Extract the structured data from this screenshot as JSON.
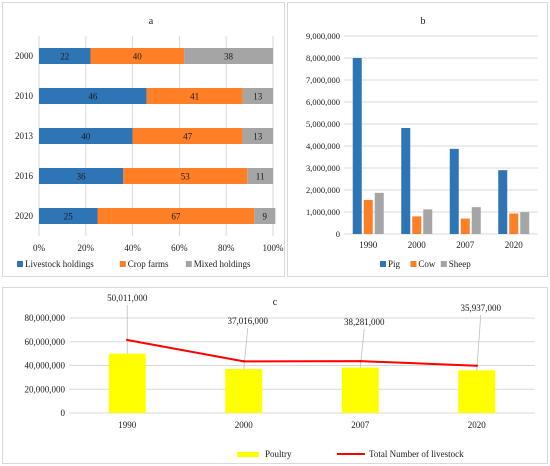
{
  "colors": {
    "livestock": "#2e75b6",
    "crop": "#ff7f27",
    "mixed": "#a5a5a5",
    "pig": "#2e75b6",
    "cow": "#ff7f27",
    "sheep": "#a5a5a5",
    "poultry": "#ffff00",
    "total": "#ff0000",
    "grid": "#d9d9d9",
    "axis": "#bfbfbf",
    "text": "#1a1a1a"
  },
  "chart_data": [
    {
      "id": "a",
      "type": "bar",
      "orientation": "horizontal-stacked-100",
      "title": "a",
      "categories": [
        "2000",
        "2010",
        "2013",
        "2016",
        "2020"
      ],
      "series": [
        {
          "name": "Livestock holdings",
          "values": [
            22,
            46,
            40,
            36,
            25
          ]
        },
        {
          "name": "Crop farms",
          "values": [
            40,
            41,
            47,
            53,
            67
          ]
        },
        {
          "name": "Mixed holdings",
          "values": [
            38,
            13,
            13,
            11,
            9
          ]
        }
      ],
      "xticks": [
        "0%",
        "20%",
        "40%",
        "60%",
        "80%",
        "100%"
      ],
      "xlim": [
        0,
        100
      ],
      "legend": "bottom",
      "grid": true
    },
    {
      "id": "b",
      "type": "bar",
      "title": "b",
      "categories": [
        "1990",
        "2000",
        "2007",
        "2020"
      ],
      "series": [
        {
          "name": "Pig",
          "values": [
            8000000,
            4820000,
            3870000,
            2900000
          ]
        },
        {
          "name": "Cow",
          "values": [
            1550000,
            800000,
            700000,
            930000
          ]
        },
        {
          "name": "Sheep",
          "values": [
            1870000,
            1120000,
            1220000,
            990000
          ]
        }
      ],
      "yticks": [
        "0",
        "1,000,000",
        "2,000,000",
        "3,000,000",
        "4,000,000",
        "5,000,000",
        "6,000,000",
        "7,000,000",
        "8,000,000",
        "9,000,000"
      ],
      "ylim": [
        0,
        9000000
      ],
      "legend": "bottom",
      "grid": true
    },
    {
      "id": "c",
      "type": "bar",
      "title": "c",
      "categories": [
        "1990",
        "2000",
        "2007",
        "2020"
      ],
      "series": [
        {
          "name": "Poultry",
          "type": "bar",
          "values": [
            50011000,
            37016000,
            38281000,
            35937000
          ],
          "labels": [
            "50,011,000",
            "37,016,000",
            "38,281,000",
            "35,937,000"
          ]
        },
        {
          "name": "Total Number of livestock",
          "type": "line",
          "values": [
            61500000,
            43500000,
            43700000,
            39800000
          ]
        }
      ],
      "yticks": [
        "0",
        "20,000,000",
        "40,000,000",
        "60,000,000",
        "80,000,000"
      ],
      "ylim": [
        0,
        80000000
      ],
      "legend": "bottom",
      "grid": true
    }
  ]
}
